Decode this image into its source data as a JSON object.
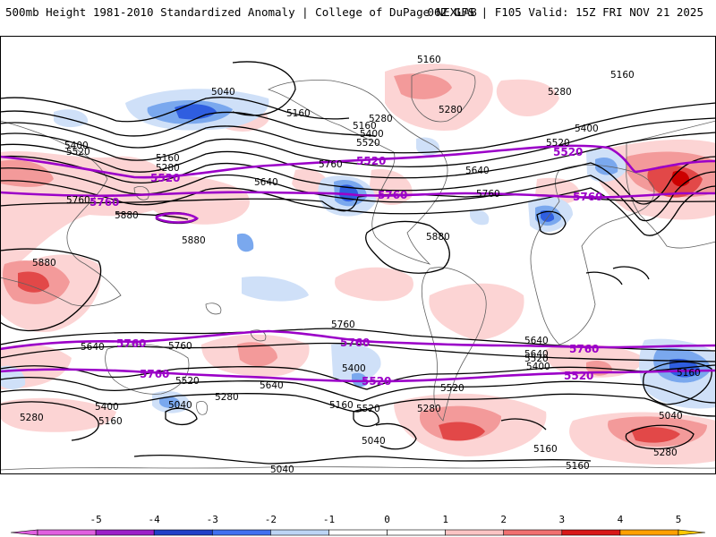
{
  "header": {
    "left": "500mb Height 1981-2010 Standardized Anomaly | College of DuPage NEXLAB",
    "right": "06Z GFS | F105 Valid: 15Z FRI NOV 21 2025"
  },
  "colorbar": {
    "ticks": [
      "-5",
      "-4",
      "-3",
      "-2",
      "-1",
      "0",
      "1",
      "2",
      "3",
      "4",
      "5"
    ],
    "colors": [
      "#e060e0",
      "#9b1fc8",
      "#2040c8",
      "#4070f0",
      "#bcd4f4",
      "#ffffff",
      "#ffffff",
      "#fbc4c4",
      "#f07070",
      "#d81818",
      "#ffa000",
      "#ffc800"
    ]
  },
  "colors": {
    "contour": "#000000",
    "reference": "#9b00c8",
    "pos_light": "#fcd4d4",
    "pos_mid": "#f39a9a",
    "pos_strong": "#e24848",
    "pos_max": "#cc0000",
    "neg_light": "#cfe0f8",
    "neg_mid": "#7aa8ee",
    "neg_strong": "#2f5ee0",
    "land": "#606060"
  },
  "height_labels": [
    "5160",
    "5160",
    "5040",
    "5160",
    "5280",
    "5400",
    "5520",
    "5160",
    "5280",
    "5280",
    "5400",
    "5640",
    "5760",
    "5520",
    "5160",
    "5280",
    "5640",
    "5760",
    "5880",
    "5880",
    "5880",
    "5880",
    "5760",
    "5520",
    "5400",
    "5640",
    "5760",
    "5640",
    "5640",
    "5760",
    "5520",
    "5520",
    "5400",
    "5160",
    "5400",
    "5280",
    "5520",
    "5040",
    "5160",
    "5280",
    "5280",
    "5040",
    "5040",
    "5160",
    "5160",
    "5040",
    "5280",
    "5160",
    "5520",
    "5640",
    "5400"
  ],
  "reference_labels": [
    "5520",
    "5520",
    "5520",
    "5760",
    "5760",
    "5760",
    "5760",
    "5760",
    "5760",
    "5760",
    "5520",
    "5520",
    "5520"
  ]
}
